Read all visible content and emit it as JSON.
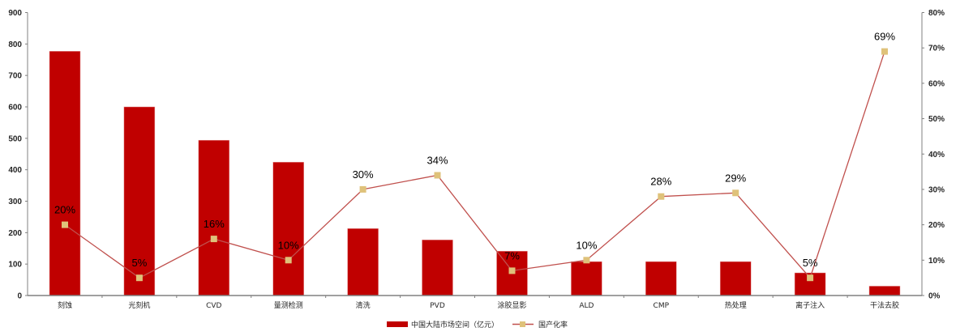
{
  "chart_data": {
    "type": "bar+line",
    "title": "",
    "categories": [
      "刻蚀",
      "光刻机",
      "CVD",
      "量测检测",
      "清洗",
      "PVD",
      "涂胶显影",
      "ALD",
      "CMP",
      "热处理",
      "离子注入",
      "干法去胶"
    ],
    "series": [
      {
        "name": "中国大陆市场空间（亿元）",
        "type": "bar",
        "axis": "left",
        "color": "#C00000",
        "values": [
          777,
          600,
          494,
          424,
          213,
          177,
          141,
          108,
          108,
          108,
          72,
          30
        ]
      },
      {
        "name": "国产化率",
        "type": "line",
        "axis": "right",
        "color": "#C0504D",
        "marker_color": "#DFC27A",
        "values": [
          20,
          5,
          16,
          10,
          30,
          34,
          7,
          10,
          28,
          29,
          5,
          69
        ],
        "labels": [
          "20%",
          "5%",
          "16%",
          "10%",
          "30%",
          "34%",
          "7%",
          "10%",
          "28%",
          "29%",
          "5%",
          "69%"
        ],
        "label_mask": [
          true,
          true,
          true,
          true,
          true,
          true,
          true,
          true,
          true,
          true,
          true,
          true
        ]
      }
    ],
    "left_axis": {
      "min": 0,
      "max": 900,
      "step": 100,
      "ticks": [
        "0",
        "100",
        "200",
        "300",
        "400",
        "500",
        "600",
        "700",
        "800",
        "900"
      ]
    },
    "right_axis": {
      "min": 0,
      "max": 80,
      "step": 10,
      "ticks": [
        "0%",
        "10%",
        "20%",
        "30%",
        "40%",
        "50%",
        "60%",
        "70%",
        "80%"
      ]
    },
    "xlabel": "",
    "ylabel": "",
    "grid": false,
    "legend_position": "bottom"
  },
  "legend": {
    "bar_label": "中国大陆市场空间（亿元）",
    "line_label": "国产化率"
  }
}
